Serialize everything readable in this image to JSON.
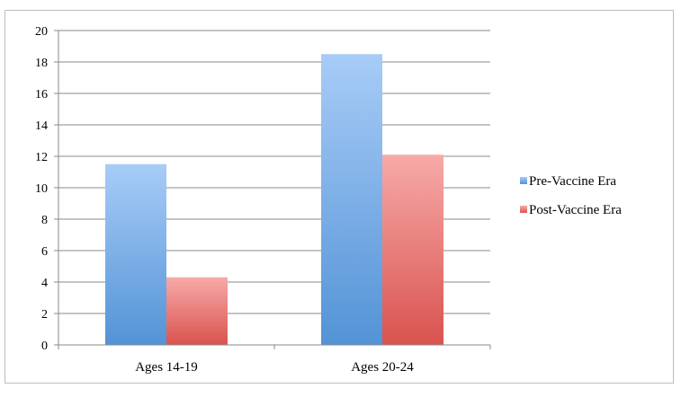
{
  "chart_data": {
    "type": "bar",
    "categories": [
      "Ages 14-19",
      "Ages 20-24"
    ],
    "series": [
      {
        "name": "Pre-Vaccine Era",
        "values": [
          11.5,
          18.5
        ],
        "color_top": "#a8ccf7",
        "color_bottom": "#5393d6"
      },
      {
        "name": "Post-Vaccine Era",
        "values": [
          4.3,
          12.1
        ],
        "color_top": "#f7aaa8",
        "color_bottom": "#d9534f"
      }
    ],
    "title": "",
    "xlabel": "",
    "ylabel": "",
    "ylim": [
      0,
      20
    ],
    "yticks": [
      0,
      2,
      4,
      6,
      8,
      10,
      12,
      14,
      16,
      18,
      20
    ],
    "grid": true,
    "legend_position": "right"
  }
}
